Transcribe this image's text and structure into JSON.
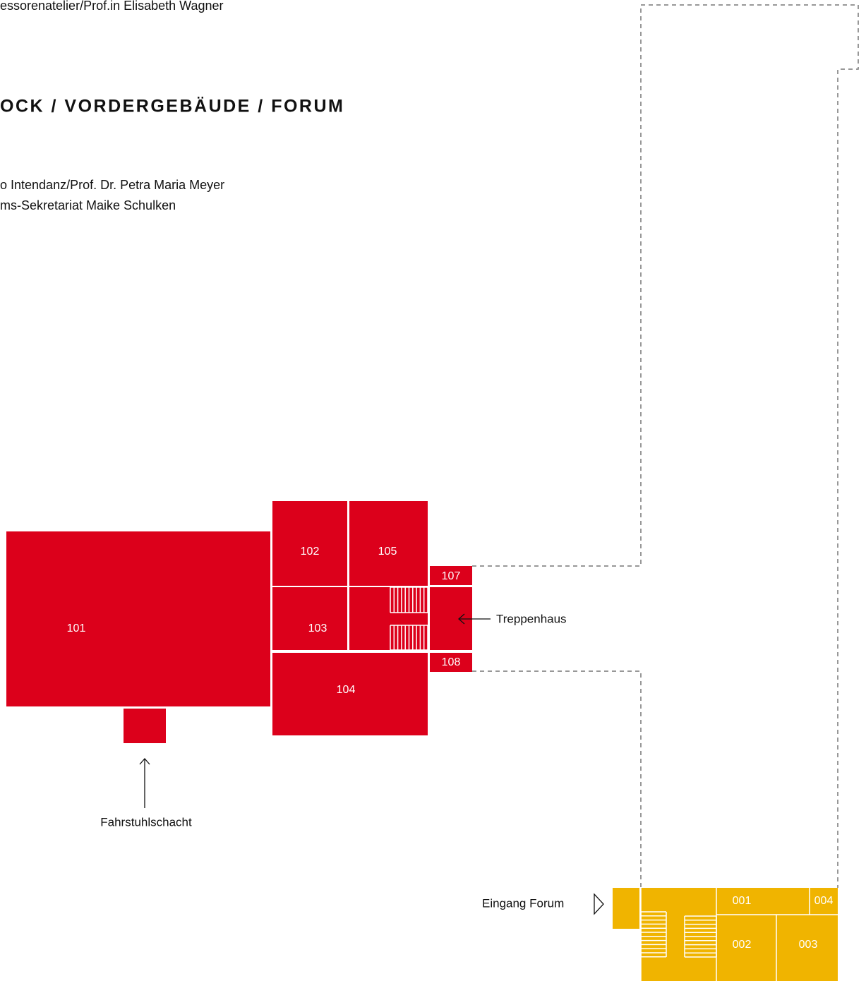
{
  "header": {
    "top_line": "essorenatelier/Prof.in Elisabeth Wagner",
    "title": "OCK / VORDERGEBÄUDE / FORUM",
    "lines": [
      "o Intendanz/Prof. Dr. Petra Maria Meyer",
      "ms-Sekretariat Maike Schulken"
    ]
  },
  "rooms_upper": [
    "101",
    "102",
    "105",
    "103",
    "107",
    "108",
    "104"
  ],
  "rooms_ground": [
    "001",
    "004",
    "002",
    "003"
  ],
  "annotations": {
    "stairwell": "Treppenhaus",
    "elevator": "Fahrstuhlschacht",
    "entrance": "Eingang  Forum"
  }
}
